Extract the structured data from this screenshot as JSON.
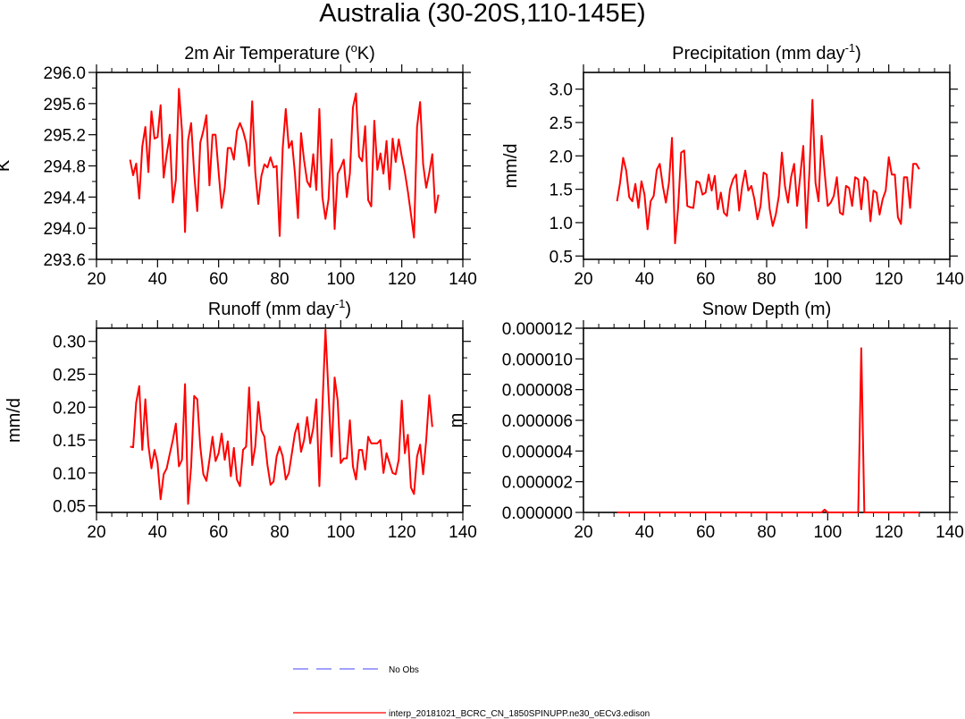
{
  "figure": {
    "title": "Australia (30-20S,110-145E)"
  },
  "colors": {
    "model": "#ff0000",
    "obs": "#6b6bff",
    "axis": "#000000"
  },
  "legend": {
    "obs_label": "No Obs",
    "model_label": "interp_20181021_BCRC_CN_1850SPINUPP.ne30_oECv3.edison"
  },
  "chart_data": [
    {
      "id": "tas",
      "type": "line",
      "title_main": "2m Air Temperature (",
      "title_sup": "o",
      "title_tail": "K)",
      "xlabel": "",
      "ylabel": "K",
      "xlim": [
        20,
        140
      ],
      "ylim": [
        293.6,
        296.0
      ],
      "xticks": [
        20,
        40,
        60,
        80,
        100,
        120,
        140
      ],
      "xticklabels": [
        "20",
        "40",
        "60",
        "80",
        "100",
        "120",
        "140"
      ],
      "yticks": [
        293.6,
        294.0,
        294.4,
        294.8,
        295.2,
        295.6,
        296.0
      ],
      "yticklabels": [
        "293.6",
        "294.0",
        "294.4",
        "294.8",
        "295.2",
        "295.6",
        "296.0"
      ],
      "series": [
        {
          "name": "model",
          "x_start": 31,
          "x_step": 1,
          "values": [
            294.88,
            294.68,
            294.83,
            294.38,
            295.05,
            295.3,
            294.72,
            295.5,
            295.15,
            295.17,
            295.58,
            294.65,
            294.95,
            295.2,
            294.33,
            294.62,
            295.79,
            295.25,
            293.95,
            295.13,
            295.35,
            294.7,
            294.22,
            295.1,
            295.25,
            295.45,
            294.55,
            295.2,
            295.2,
            294.72,
            294.26,
            294.52,
            295.03,
            295.03,
            294.88,
            295.25,
            295.35,
            295.25,
            295.1,
            294.8,
            295.63,
            294.72,
            294.31,
            294.67,
            294.82,
            294.78,
            294.91,
            294.78,
            294.8,
            293.9,
            295.03,
            295.53,
            295.03,
            295.12,
            294.7,
            294.13,
            295.22,
            294.87,
            294.6,
            294.53,
            294.95,
            294.49,
            295.53,
            294.4,
            294.12,
            294.37,
            295.14,
            293.99,
            294.7,
            294.78,
            294.88,
            294.4,
            294.7,
            295.55,
            295.73,
            294.92,
            294.86,
            295.31,
            294.36,
            294.28,
            295.38,
            294.75,
            294.96,
            294.7,
            295.12,
            294.5,
            295.15,
            294.85,
            295.14,
            294.92,
            294.72,
            294.47,
            294.18,
            293.88,
            295.3,
            295.62,
            294.82,
            294.52,
            294.71,
            294.95,
            294.2,
            294.43
          ]
        }
      ]
    },
    {
      "id": "pr",
      "type": "line",
      "title_main": "Precipitation (mm day",
      "title_sup": "-1",
      "title_tail": ")",
      "xlabel": "",
      "ylabel": "mm/d",
      "xlim": [
        20,
        140
      ],
      "ylim": [
        0.45,
        3.25
      ],
      "xticks": [
        20,
        40,
        60,
        80,
        100,
        120,
        140
      ],
      "xticklabels": [
        "20",
        "40",
        "60",
        "80",
        "100",
        "120",
        "140"
      ],
      "yticks": [
        0.5,
        1.0,
        1.5,
        2.0,
        2.5,
        3.0
      ],
      "yticklabels": [
        "0.5",
        "1.0",
        "1.5",
        "2.0",
        "2.5",
        "3.0"
      ],
      "series": [
        {
          "name": "model",
          "x_start": 31,
          "x_step": 1,
          "values": [
            1.32,
            1.6,
            1.97,
            1.78,
            1.38,
            1.32,
            1.58,
            1.22,
            1.62,
            1.42,
            0.9,
            1.32,
            1.4,
            1.79,
            1.88,
            1.55,
            1.3,
            1.6,
            2.27,
            0.69,
            1.22,
            2.05,
            2.08,
            1.25,
            1.23,
            1.22,
            1.62,
            1.6,
            1.42,
            1.45,
            1.72,
            1.48,
            1.7,
            1.2,
            1.45,
            1.15,
            1.1,
            1.5,
            1.65,
            1.72,
            1.18,
            1.55,
            1.78,
            1.48,
            1.55,
            1.35,
            1.05,
            1.25,
            1.75,
            1.72,
            1.2,
            0.95,
            1.12,
            1.4,
            2.05,
            1.55,
            1.3,
            1.68,
            1.88,
            1.25,
            1.7,
            2.15,
            0.92,
            1.75,
            2.84,
            1.6,
            1.32,
            2.3,
            1.75,
            1.25,
            1.3,
            1.4,
            1.68,
            1.15,
            1.12,
            1.55,
            1.52,
            1.25,
            1.68,
            1.65,
            1.2,
            1.68,
            1.62,
            1.02,
            1.48,
            1.45,
            1.12,
            1.35,
            1.48,
            1.98,
            1.72,
            1.72,
            1.08,
            0.98,
            1.68,
            1.68,
            1.22,
            1.88,
            1.88,
            1.8
          ]
        }
      ]
    },
    {
      "id": "mrro",
      "type": "line",
      "title_main": "Runoff (mm day",
      "title_sup": "-1",
      "title_tail": ")",
      "xlabel": "",
      "ylabel": "mm/d",
      "xlim": [
        20,
        140
      ],
      "ylim": [
        0.04,
        0.32
      ],
      "xticks": [
        20,
        40,
        60,
        80,
        100,
        120,
        140
      ],
      "xticklabels": [
        "20",
        "40",
        "60",
        "80",
        "100",
        "120",
        "140"
      ],
      "yticks": [
        0.05,
        0.1,
        0.15,
        0.2,
        0.25,
        0.3
      ],
      "yticklabels": [
        "0.05",
        "0.10",
        "0.15",
        "0.20",
        "0.25",
        "0.30"
      ],
      "series": [
        {
          "name": "model",
          "x_start": 31,
          "x_step": 1,
          "values": [
            0.14,
            0.139,
            0.207,
            0.232,
            0.135,
            0.212,
            0.142,
            0.107,
            0.135,
            0.115,
            0.06,
            0.098,
            0.107,
            0.129,
            0.15,
            0.175,
            0.11,
            0.12,
            0.235,
            0.053,
            0.11,
            0.217,
            0.212,
            0.14,
            0.098,
            0.088,
            0.12,
            0.155,
            0.118,
            0.13,
            0.16,
            0.12,
            0.148,
            0.095,
            0.138,
            0.09,
            0.08,
            0.135,
            0.14,
            0.23,
            0.112,
            0.14,
            0.208,
            0.165,
            0.155,
            0.112,
            0.082,
            0.087,
            0.125,
            0.14,
            0.125,
            0.09,
            0.1,
            0.13,
            0.16,
            0.175,
            0.132,
            0.15,
            0.185,
            0.145,
            0.168,
            0.212,
            0.08,
            0.2,
            0.318,
            0.22,
            0.125,
            0.245,
            0.21,
            0.115,
            0.122,
            0.122,
            0.18,
            0.11,
            0.09,
            0.135,
            0.135,
            0.105,
            0.155,
            0.145,
            0.145,
            0.145,
            0.15,
            0.1,
            0.13,
            0.115,
            0.1,
            0.098,
            0.12,
            0.21,
            0.13,
            0.158,
            0.078,
            0.068,
            0.125,
            0.143,
            0.098,
            0.15,
            0.218,
            0.17
          ]
        }
      ]
    },
    {
      "id": "snd",
      "type": "line",
      "title_main": "Snow Depth (m)",
      "title_sup": "",
      "title_tail": "",
      "xlabel": "",
      "ylabel": "m",
      "xlim": [
        20,
        140
      ],
      "ylim": [
        0,
        1.2e-05
      ],
      "xticks": [
        20,
        40,
        60,
        80,
        100,
        120,
        140
      ],
      "xticklabels": [
        "20",
        "40",
        "60",
        "80",
        "100",
        "120",
        "140"
      ],
      "yticks": [
        0,
        2e-06,
        4e-06,
        6e-06,
        8e-06,
        1e-05,
        1.2e-05
      ],
      "yticklabels": [
        "0.000000",
        "0.000002",
        "0.000004",
        "0.000006",
        "0.000008",
        "0.000010",
        "0.000012"
      ],
      "series": [
        {
          "name": "model",
          "x_start": 31,
          "x_step": 1,
          "values": [
            0,
            0,
            0,
            0,
            0,
            0,
            0,
            0,
            0,
            0,
            0,
            0,
            0,
            0,
            0,
            0,
            0,
            0,
            0,
            0,
            0,
            0,
            0,
            0,
            0,
            0,
            0,
            0,
            0,
            0,
            0,
            0,
            0,
            0,
            0,
            0,
            0,
            0,
            0,
            0,
            0,
            0,
            0,
            0,
            0,
            0,
            0,
            0,
            0,
            0,
            0,
            0,
            0,
            0,
            0,
            0,
            0,
            0,
            0,
            0,
            0,
            0,
            0,
            0,
            0,
            0,
            0,
            0,
            1.8e-07,
            0,
            0,
            0,
            0,
            0,
            0,
            0,
            0,
            0,
            0,
            0,
            1.07e-05,
            0,
            0,
            0,
            0,
            0,
            0,
            0,
            0,
            0,
            0,
            0,
            0,
            0,
            0,
            0,
            0,
            0,
            0,
            0
          ]
        }
      ]
    }
  ]
}
